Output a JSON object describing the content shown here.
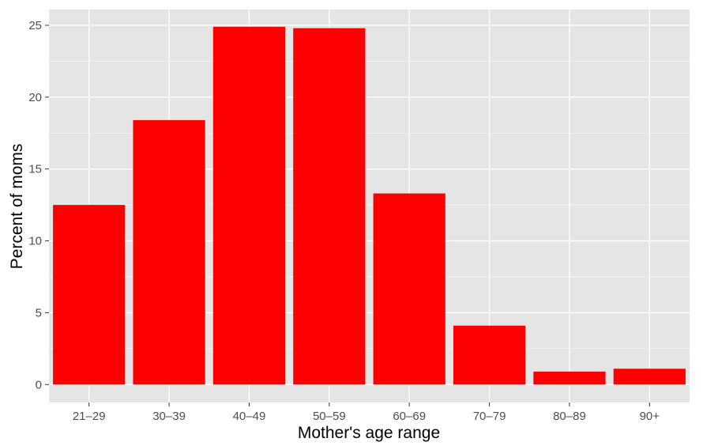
{
  "chart_data": {
    "type": "bar",
    "categories": [
      "21–29",
      "30–39",
      "40–49",
      "50–59",
      "60–69",
      "70–79",
      "80–89",
      "90+"
    ],
    "values": [
      12.5,
      18.4,
      24.9,
      24.8,
      13.3,
      4.1,
      0.9,
      1.1
    ],
    "xlabel": "Mother's age range",
    "ylabel": "Percent of moms",
    "ylim": [
      -1.25,
      26.1
    ],
    "yticks": [
      0,
      5,
      10,
      15,
      20,
      25
    ],
    "grid": true,
    "colors": {
      "bar": "#ff0000",
      "panel": "#e5e5e5",
      "grid_major": "#ffffff",
      "grid_minor": "#f2f2f2"
    }
  }
}
